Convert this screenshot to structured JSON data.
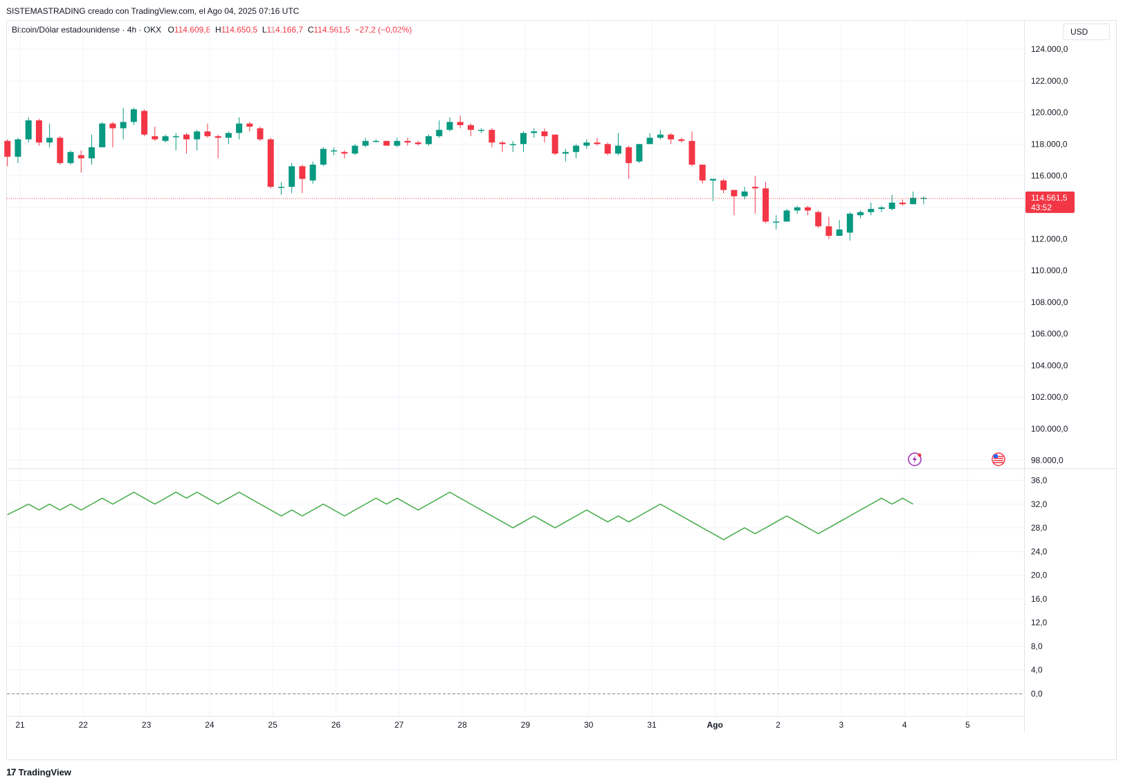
{
  "header": {
    "text": "SISTEMASTRADING creado con TradingView.com, el Ago 04, 2025 07:16 UTC"
  },
  "legend": {
    "symbol": "Bitcoin/Dólar estadounidense · 4h · OKX",
    "o_label": "O",
    "o_value": "114.609,8",
    "h_label": "H",
    "h_value": "114.650,5",
    "l_label": "L",
    "l_value": "114.166,7",
    "c_label": "C",
    "c_value": "114.561,5",
    "change": "−27,2 (−0,02%)"
  },
  "currency": "USD",
  "price_badge": {
    "price": "114.561,5",
    "countdown": "43:52"
  },
  "footer": {
    "brand": "TradingView"
  },
  "colors": {
    "up": "#089981",
    "down": "#f23645",
    "indicator": "#4caf50",
    "grid": "#f0f3fa"
  },
  "chart_data": [
    {
      "type": "candlestick",
      "title": "Bitcoin/Dólar estadounidense · 4h · OKX",
      "x_ticks": [
        "21",
        "22",
        "23",
        "24",
        "25",
        "26",
        "27",
        "28",
        "29",
        "30",
        "31",
        "Ago",
        "2",
        "3",
        "4",
        "5"
      ],
      "y_ticks": [
        "124.000,0",
        "122.000,0",
        "120.000,0",
        "118.000,0",
        "116.000,0",
        "112.000,0",
        "110.000,0",
        "108.000,0",
        "106.000,0",
        "104.000,0",
        "102.000,0",
        "100.000,0",
        "98.000,0"
      ],
      "ylim": [
        97500,
        125800
      ],
      "last_price": 114561.5,
      "candles": [
        [
          118200,
          117200,
          118300,
          116600
        ],
        [
          117200,
          118300,
          118400,
          116800
        ],
        [
          118300,
          119500,
          119700,
          118100
        ],
        [
          119500,
          118100,
          119600,
          117900
        ],
        [
          118100,
          118400,
          119300,
          117800
        ],
        [
          118400,
          116800,
          118500,
          116700
        ],
        [
          116800,
          117500,
          117600,
          116700
        ],
        [
          117300,
          117100,
          117600,
          116200
        ],
        [
          117100,
          117800,
          118600,
          116700
        ],
        [
          117800,
          119300,
          119400,
          117800
        ],
        [
          119300,
          119000,
          119400,
          117800
        ],
        [
          119000,
          119400,
          120300,
          118300
        ],
        [
          119400,
          120200,
          120300,
          119200
        ],
        [
          120100,
          118600,
          120200,
          118500
        ],
        [
          118500,
          118300,
          119100,
          118200
        ],
        [
          118200,
          118500,
          118600,
          118100
        ],
        [
          118500,
          118500,
          118700,
          117600
        ],
        [
          118600,
          118300,
          118700,
          117400
        ],
        [
          118300,
          118800,
          118900,
          117600
        ],
        [
          118800,
          118500,
          119300,
          118400
        ],
        [
          118500,
          118400,
          118600,
          117100
        ],
        [
          118400,
          118700,
          118800,
          118000
        ],
        [
          118700,
          119300,
          119700,
          118300
        ],
        [
          119300,
          119100,
          119400,
          118800
        ],
        [
          119000,
          118300,
          119100,
          118200
        ],
        [
          118300,
          115300,
          118400,
          115200
        ],
        [
          115300,
          115300,
          115600,
          114800
        ],
        [
          115300,
          116600,
          116800,
          114900
        ],
        [
          116600,
          115800,
          116700,
          114900
        ],
        [
          115700,
          116700,
          116900,
          115500
        ],
        [
          116700,
          117700,
          117800,
          116600
        ],
        [
          117600,
          117600,
          117800,
          117300
        ],
        [
          117500,
          117400,
          117600,
          117100
        ],
        [
          117400,
          117900,
          118000,
          117300
        ],
        [
          117900,
          118200,
          118400,
          117800
        ],
        [
          118200,
          118200,
          118300,
          118100
        ],
        [
          118200,
          117900,
          118200,
          117900
        ],
        [
          117900,
          118200,
          118400,
          117800
        ],
        [
          118200,
          118100,
          118400,
          117900
        ],
        [
          118100,
          118000,
          118200,
          117900
        ],
        [
          118000,
          118500,
          118600,
          117900
        ],
        [
          118500,
          118900,
          119500,
          118400
        ],
        [
          118900,
          119400,
          119700,
          118800
        ],
        [
          119400,
          119200,
          119800,
          119000
        ],
        [
          119200,
          118900,
          119300,
          118500
        ],
        [
          118900,
          118900,
          119000,
          118700
        ],
        [
          118900,
          118100,
          119000,
          117800
        ],
        [
          118100,
          118000,
          118200,
          117500
        ],
        [
          118000,
          118000,
          118200,
          117500
        ],
        [
          118000,
          118700,
          118800,
          117500
        ],
        [
          118700,
          118800,
          119000,
          118400
        ],
        [
          118800,
          118500,
          119000,
          118100
        ],
        [
          118600,
          117400,
          118600,
          117300
        ],
        [
          117400,
          117500,
          117700,
          116900
        ],
        [
          117500,
          117900,
          118000,
          117100
        ],
        [
          117900,
          118100,
          118300,
          117700
        ],
        [
          118100,
          118000,
          118400,
          117900
        ],
        [
          118000,
          117400,
          118100,
          117300
        ],
        [
          117400,
          117900,
          118700,
          117300
        ],
        [
          117800,
          116800,
          117900,
          115800
        ],
        [
          116900,
          118000,
          118000,
          116800
        ],
        [
          118000,
          118400,
          118700,
          118000
        ],
        [
          118400,
          118600,
          118900,
          118300
        ],
        [
          118600,
          118300,
          118700,
          118000
        ],
        [
          118300,
          118200,
          118400,
          118100
        ],
        [
          118200,
          116700,
          118800,
          116600
        ],
        [
          116700,
          115700,
          116700,
          115500
        ],
        [
          115700,
          115800,
          115800,
          114400
        ],
        [
          115700,
          115100,
          115800,
          114900
        ],
        [
          115100,
          114700,
          115000,
          113500
        ],
        [
          114700,
          115000,
          115300,
          114500
        ],
        [
          115300,
          115200,
          116000,
          113600
        ],
        [
          115200,
          113100,
          115600,
          113000
        ],
        [
          113100,
          113100,
          113500,
          112600
        ],
        [
          113100,
          113800,
          113900,
          113100
        ],
        [
          113800,
          114000,
          114100,
          113600
        ],
        [
          114000,
          113800,
          114100,
          113500
        ],
        [
          113700,
          112800,
          113800,
          112700
        ],
        [
          112800,
          112200,
          113400,
          112000
        ],
        [
          112200,
          112600,
          113200,
          112200
        ],
        [
          112400,
          113600,
          113700,
          111900
        ],
        [
          113500,
          113700,
          113800,
          113300
        ],
        [
          113700,
          113900,
          114300,
          113500
        ],
        [
          113900,
          114000,
          114100,
          113700
        ],
        [
          113900,
          114300,
          114800,
          113800
        ],
        [
          114300,
          114200,
          114500,
          114100
        ],
        [
          114200,
          114600,
          115000,
          114200
        ],
        [
          114600,
          114600,
          114700,
          114200
        ]
      ]
    },
    {
      "type": "line",
      "y_ticks": [
        "36,0",
        "32,0",
        "28,0",
        "24,0",
        "20,0",
        "16,0",
        "12,0",
        "8,0",
        "4,0",
        "0,0"
      ],
      "ylim": [
        0,
        36
      ],
      "reference_line": 0,
      "values": [
        30.2,
        31.1,
        32,
        31,
        32,
        31,
        32,
        31,
        32,
        33,
        32,
        33,
        34,
        33,
        32,
        33,
        34,
        33,
        34,
        33,
        32,
        33,
        34,
        33,
        32,
        31,
        30,
        31,
        30,
        31,
        32,
        31,
        30,
        31,
        32,
        33,
        32,
        33,
        32,
        31,
        32,
        33,
        34,
        33,
        32,
        31,
        30,
        29,
        28,
        29,
        30,
        29,
        28,
        29,
        30,
        31,
        30,
        29,
        30,
        29,
        30,
        31,
        32,
        31,
        30,
        29,
        28,
        27,
        26,
        27,
        28,
        27,
        28,
        29,
        30,
        29,
        28,
        27,
        28,
        29,
        30,
        31,
        32,
        33,
        32,
        33,
        32
      ]
    }
  ]
}
